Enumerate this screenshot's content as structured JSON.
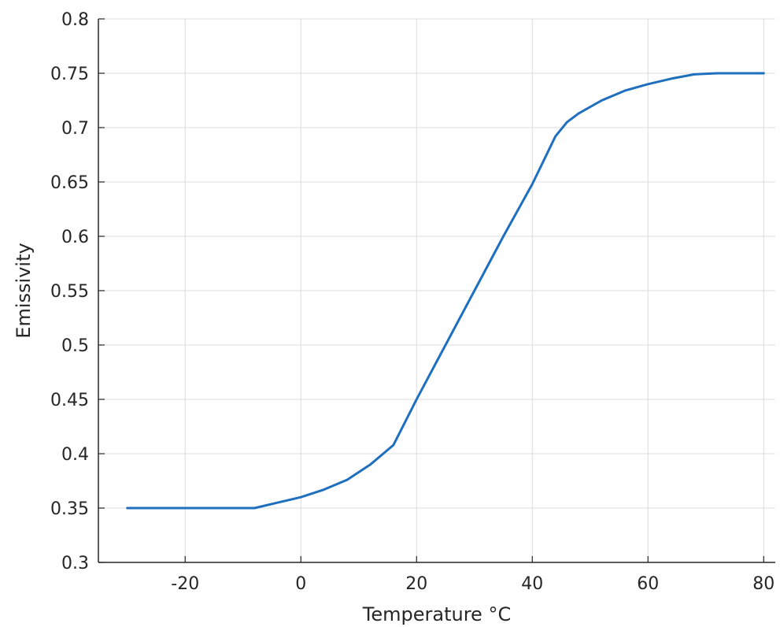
{
  "chart_data": {
    "type": "line",
    "title": "",
    "xlabel": "Temperature °C",
    "ylabel": "Emissivity",
    "xlim": [
      -35,
      82
    ],
    "ylim": [
      0.3,
      0.8
    ],
    "xticks": [
      -20,
      0,
      20,
      40,
      60,
      80
    ],
    "xtick_labels": [
      "-20",
      "0",
      "20",
      "40",
      "60",
      "80"
    ],
    "yticks": [
      0.3,
      0.35,
      0.4,
      0.45,
      0.5,
      0.55,
      0.6,
      0.65,
      0.7,
      0.75,
      0.8
    ],
    "ytick_labels": [
      "0.3",
      "0.35",
      "0.4",
      "0.45",
      "0.5",
      "0.55",
      "0.6",
      "0.65",
      "0.7",
      "0.75",
      "0.8"
    ],
    "grid": true,
    "series": [
      {
        "color": "#1f6fbf",
        "x": [
          -30,
          -20,
          -8,
          -4,
          0,
          4,
          8,
          12,
          16,
          20,
          25,
          30,
          35,
          40,
          44,
          46,
          48,
          52,
          56,
          60,
          64,
          68,
          72,
          80
        ],
        "y": [
          0.35,
          0.35,
          0.35,
          0.355,
          0.36,
          0.367,
          0.376,
          0.39,
          0.408,
          0.45,
          0.5,
          0.55,
          0.6,
          0.648,
          0.692,
          0.705,
          0.713,
          0.725,
          0.734,
          0.74,
          0.745,
          0.749,
          0.75,
          0.75
        ]
      }
    ]
  }
}
